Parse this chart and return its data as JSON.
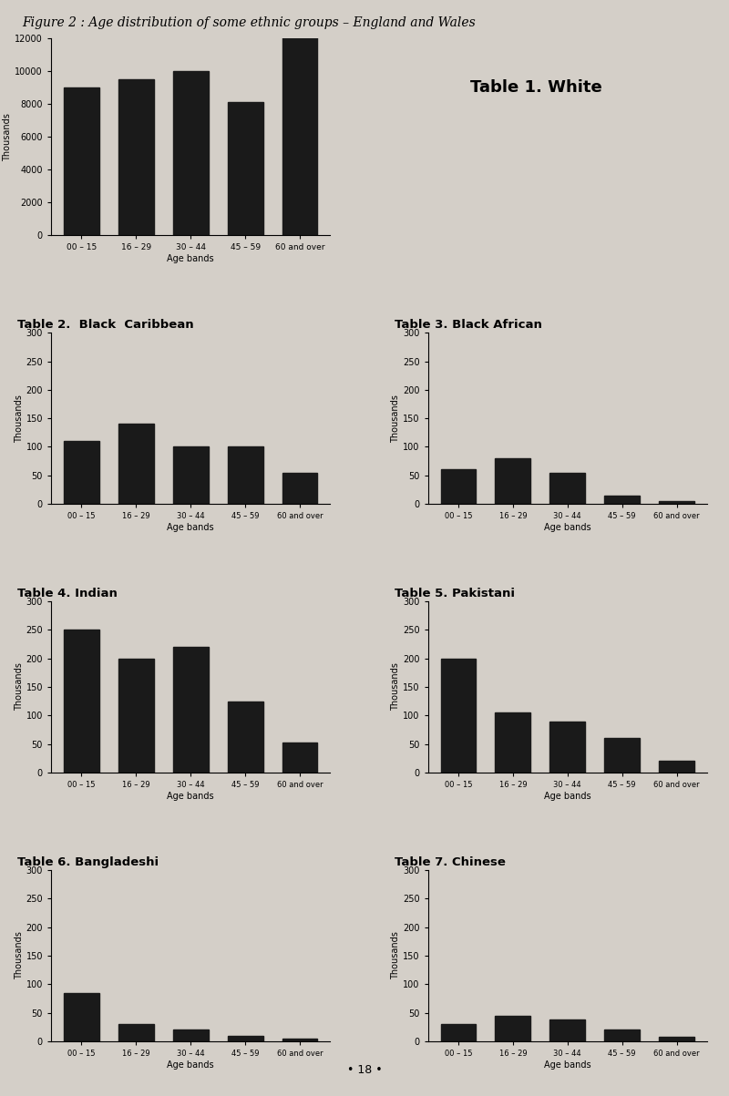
{
  "figure_title": "Figure 2 : Age distribution of some ethnic groups – England and Wales",
  "age_bands": [
    "00 – 15",
    "16 – 29",
    "30 – 44",
    "45 – 59",
    "60 and over"
  ],
  "age_bands_short": [
    "00 - 15",
    "16 - 29",
    "30 - 44",
    "45 - 59",
    "60 and over"
  ],
  "tables": [
    {
      "title": "Table 1. White",
      "values": [
        9000,
        9500,
        10000,
        8100,
        12500
      ],
      "ylim": [
        0,
        12000
      ],
      "yticks": [
        0,
        2000,
        4000,
        6000,
        8000,
        10000,
        12000
      ],
      "ylabel": "Thousands",
      "xlabel": "Age bands"
    },
    {
      "title": "Table 2.  Black  Caribbean",
      "values": [
        110,
        140,
        100,
        100,
        55
      ],
      "ylim": [
        0,
        300
      ],
      "yticks": [
        0,
        50,
        100,
        150,
        200,
        250,
        300
      ],
      "ylabel": "Thousands",
      "xlabel": "Age bands"
    },
    {
      "title": "Table 3. Black African",
      "values": [
        60,
        80,
        55,
        15,
        5
      ],
      "ylim": [
        0,
        300
      ],
      "yticks": [
        0,
        50,
        100,
        150,
        200,
        250,
        300
      ],
      "ylabel": "Thousands",
      "xlabel": "Age bands"
    },
    {
      "title": "Table 4. Indian",
      "values": [
        250,
        200,
        220,
        125,
        52
      ],
      "ylim": [
        0,
        300
      ],
      "yticks": [
        0,
        50,
        100,
        150,
        200,
        250,
        300
      ],
      "ylabel": "Thousands",
      "xlabel": "Age bands"
    },
    {
      "title": "Table 5. Pakistani",
      "values": [
        200,
        105,
        90,
        60,
        20
      ],
      "ylim": [
        0,
        300
      ],
      "yticks": [
        0,
        50,
        100,
        150,
        200,
        250,
        300
      ],
      "ylabel": "Thousands",
      "xlabel": "Age bands"
    },
    {
      "title": "Table 6. Bangladeshi",
      "values": [
        85,
        30,
        20,
        10,
        5
      ],
      "ylim": [
        0,
        300
      ],
      "yticks": [
        0,
        50,
        100,
        150,
        200,
        250,
        300
      ],
      "ylabel": "Thousands",
      "xlabel": "Age bands"
    },
    {
      "title": "Table 7. Chinese",
      "values": [
        30,
        45,
        38,
        20,
        7
      ],
      "ylim": [
        0,
        300
      ],
      "yticks": [
        0,
        50,
        100,
        150,
        200,
        250,
        300
      ],
      "ylabel": "Thousands",
      "xlabel": "Age bands"
    }
  ],
  "bar_color": "#1a1a1a",
  "bg_color": "#d4cfc8",
  "page_number": "• 18 •"
}
